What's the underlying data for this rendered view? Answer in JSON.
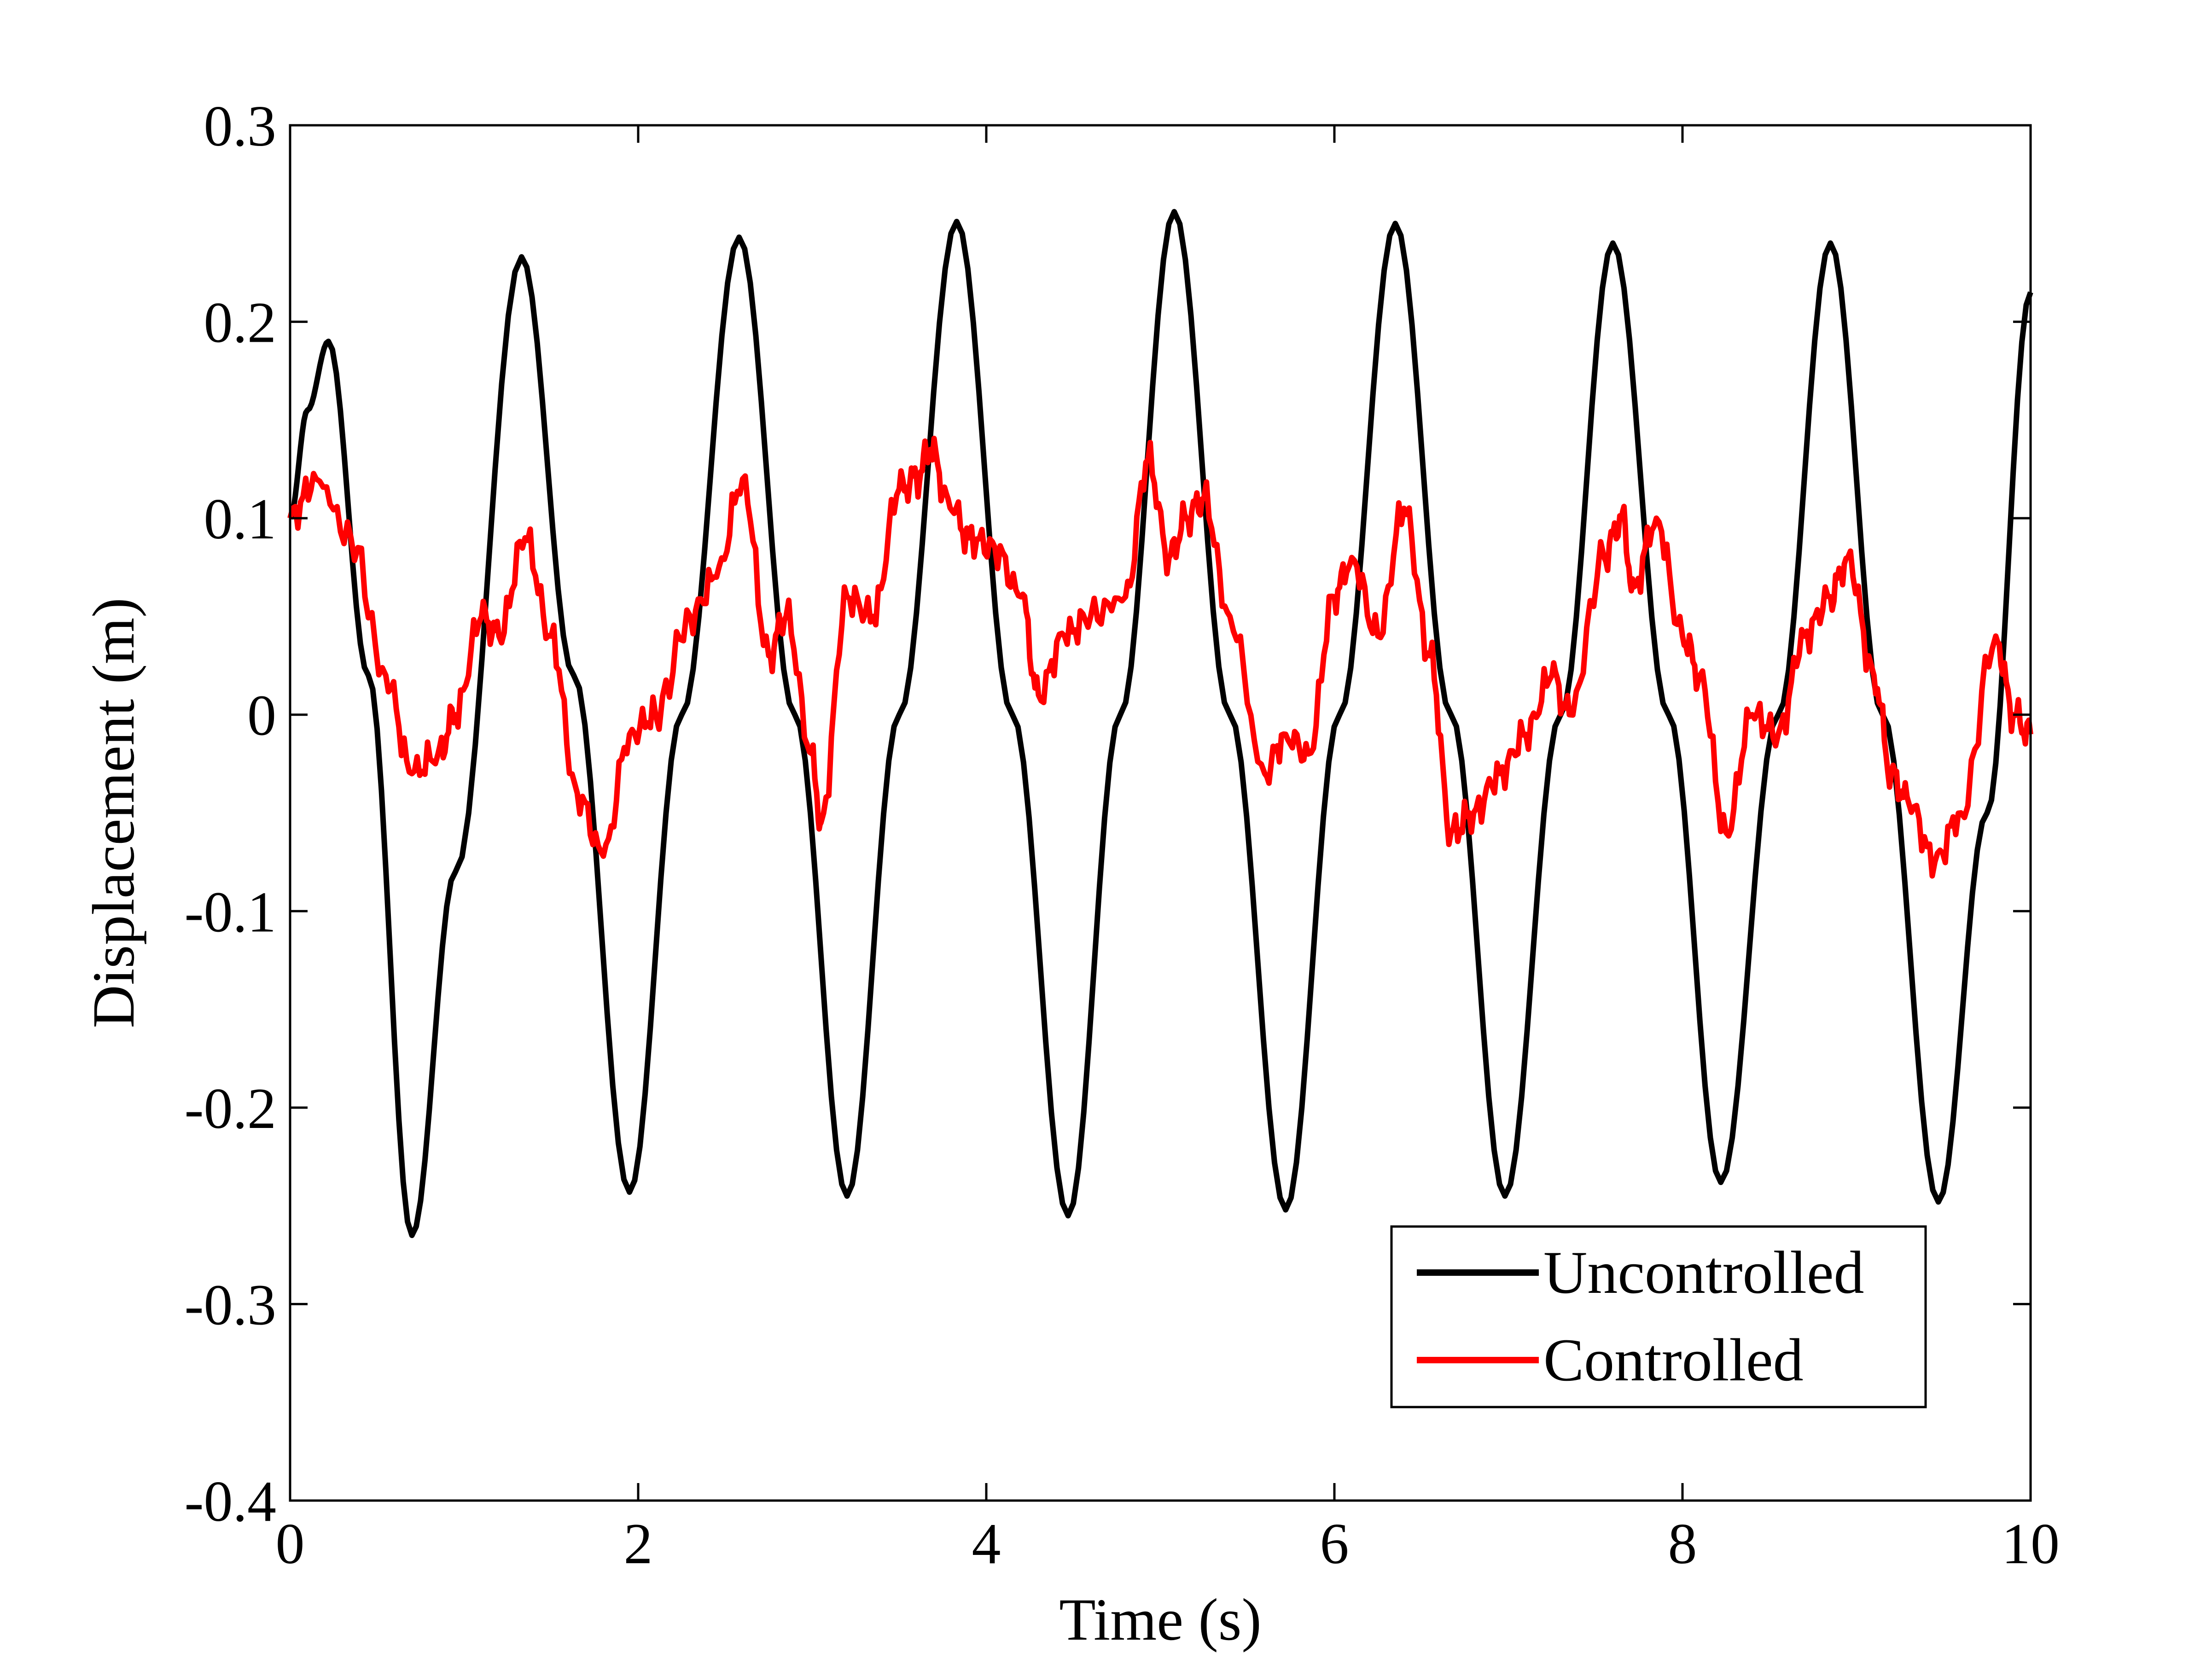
{
  "chart_data": {
    "type": "line",
    "title": "",
    "xlabel": "Time (s)",
    "ylabel": "Displacement (m)",
    "xlim": [
      0,
      10
    ],
    "ylim": [
      -0.4,
      0.3
    ],
    "xticks": [
      0,
      2,
      4,
      6,
      8,
      10
    ],
    "xtick_labels": [
      "0",
      "2",
      "4",
      "6",
      "8",
      "10"
    ],
    "yticks": [
      -0.4,
      -0.3,
      -0.2,
      -0.1,
      0,
      0.1,
      0.2,
      0.3
    ],
    "ytick_labels": [
      "-0.4",
      "-0.3",
      "-0.2",
      "-0.1",
      "0",
      "0.1",
      "0.2",
      "0.3"
    ],
    "grid": false,
    "legend_position": "bottom-right",
    "series": [
      {
        "name": "Uncontrolled",
        "color": "#000000",
        "x": [
          0,
          0.1,
          0.22,
          0.45,
          0.7,
          0.95,
          1.33,
          1.63,
          1.95,
          2.25,
          2.58,
          2.9,
          3.2,
          3.5,
          3.83,
          4.15,
          4.47,
          4.77,
          5.08,
          5.4,
          5.72,
          6.03,
          6.35,
          6.67,
          6.98,
          7.3,
          7.6,
          7.92,
          8.22,
          8.55,
          8.85,
          9.15,
          9.47,
          9.75,
          10.0
        ],
        "y": [
          0.1,
          0.155,
          0.19,
          0.02,
          -0.265,
          -0.08,
          0.233,
          0.02,
          -0.243,
          0.0,
          0.243,
          0.0,
          -0.245,
          0.0,
          0.251,
          0.0,
          -0.255,
          0.0,
          0.256,
          0.0,
          -0.252,
          0.0,
          0.25,
          0.0,
          -0.245,
          0.0,
          0.24,
          0.0,
          -0.238,
          0.0,
          0.24,
          0.0,
          -0.248,
          -0.05,
          0.215
        ]
      },
      {
        "name": "Controlled",
        "color": "#ff0000",
        "x": [
          0,
          0.15,
          0.35,
          0.55,
          0.7,
          0.85,
          0.95,
          1.1,
          1.2,
          1.35,
          1.5,
          1.65,
          1.8,
          1.95,
          2.1,
          2.3,
          2.45,
          2.6,
          2.75,
          2.85,
          3.0,
          3.05,
          3.2,
          3.35,
          3.5,
          3.6,
          3.68,
          3.78,
          3.9,
          4.05,
          4.2,
          4.3,
          4.45,
          4.6,
          4.8,
          4.93,
          5.05,
          5.15,
          5.25,
          5.4,
          5.6,
          5.72,
          5.85,
          6.0,
          6.1,
          6.25,
          6.4,
          6.55,
          6.67,
          6.8,
          6.95,
          7.1,
          7.25,
          7.35,
          7.55,
          7.65,
          7.72,
          7.85,
          8.0,
          8.1,
          8.25,
          8.4,
          8.55,
          8.7,
          8.85,
          8.95,
          9.1,
          9.2,
          9.3,
          9.45,
          9.6,
          9.8,
          9.9,
          10.0
        ],
        "y": [
          0.1,
          0.12,
          0.09,
          0.02,
          -0.03,
          -0.02,
          0.0,
          0.05,
          0.04,
          0.09,
          0.04,
          -0.04,
          -0.072,
          -0.01,
          0.0,
          0.05,
          0.07,
          0.12,
          0.03,
          0.05,
          -0.02,
          -0.055,
          0.06,
          0.05,
          0.115,
          0.12,
          0.135,
          0.11,
          0.09,
          0.085,
          0.06,
          0.01,
          0.04,
          0.05,
          0.06,
          0.13,
          0.08,
          0.1,
          0.11,
          0.05,
          -0.03,
          -0.01,
          -0.02,
          0.06,
          0.08,
          0.04,
          0.105,
          0.03,
          -0.06,
          -0.05,
          -0.03,
          -0.01,
          0.02,
          0.0,
          0.08,
          0.1,
          0.065,
          0.1,
          0.04,
          0.02,
          -0.06,
          0.0,
          -0.01,
          0.04,
          0.06,
          0.08,
          0.02,
          -0.03,
          -0.045,
          -0.075,
          -0.05,
          0.04,
          0.0,
          -0.01
        ]
      }
    ]
  }
}
